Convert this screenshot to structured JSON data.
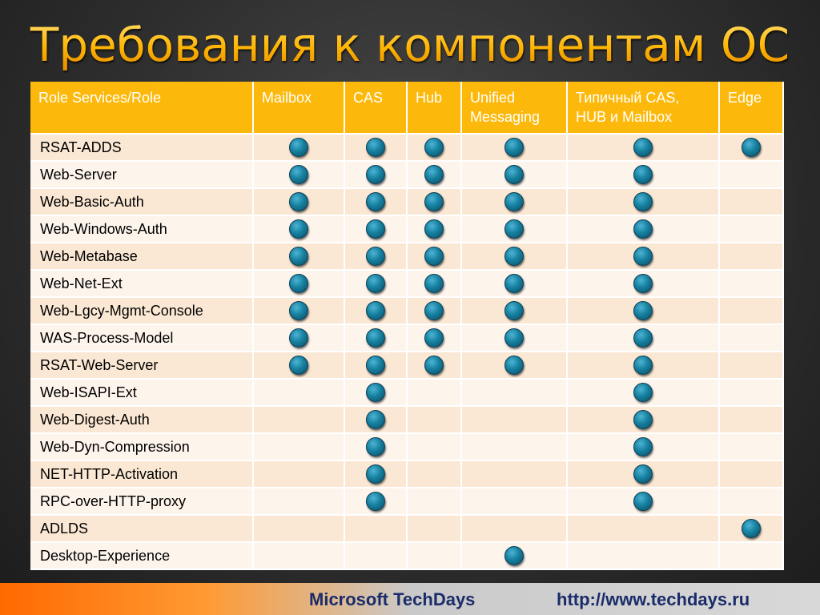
{
  "title": "Требования к компонентам ОС",
  "columns": [
    "Role Services/Role",
    "Mailbox",
    "CAS",
    "Hub",
    "Unified Messaging",
    "Типичный CAS, HUB и Mailbox",
    "Edge"
  ],
  "rows": [
    {
      "name": "RSAT-ADDS",
      "marks": [
        true,
        true,
        true,
        true,
        true,
        true
      ]
    },
    {
      "name": "Web-Server",
      "marks": [
        true,
        true,
        true,
        true,
        true,
        false
      ]
    },
    {
      "name": "Web-Basic-Auth",
      "marks": [
        true,
        true,
        true,
        true,
        true,
        false
      ]
    },
    {
      "name": "Web-Windows-Auth",
      "marks": [
        true,
        true,
        true,
        true,
        true,
        false
      ]
    },
    {
      "name": "Web-Metabase",
      "marks": [
        true,
        true,
        true,
        true,
        true,
        false
      ]
    },
    {
      "name": "Web-Net-Ext",
      "marks": [
        true,
        true,
        true,
        true,
        true,
        false
      ]
    },
    {
      "name": "Web-Lgcy-Mgmt-Console",
      "marks": [
        true,
        true,
        true,
        true,
        true,
        false
      ]
    },
    {
      "name": "WAS-Process-Model",
      "marks": [
        true,
        true,
        true,
        true,
        true,
        false
      ]
    },
    {
      "name": "RSAT-Web-Server",
      "marks": [
        true,
        true,
        true,
        true,
        true,
        false
      ]
    },
    {
      "name": "Web-ISAPI-Ext",
      "marks": [
        false,
        true,
        false,
        false,
        true,
        false
      ]
    },
    {
      "name": "Web-Digest-Auth",
      "marks": [
        false,
        true,
        false,
        false,
        true,
        false
      ]
    },
    {
      "name": "Web-Dyn-Compression",
      "marks": [
        false,
        true,
        false,
        false,
        true,
        false
      ]
    },
    {
      "name": "NET-HTTP-Activation",
      "marks": [
        false,
        true,
        false,
        false,
        true,
        false
      ]
    },
    {
      "name": "RPC-over-HTTP-proxy",
      "marks": [
        false,
        true,
        false,
        false,
        true,
        false
      ]
    },
    {
      "name": "ADLDS",
      "marks": [
        false,
        false,
        false,
        false,
        false,
        true
      ]
    },
    {
      "name": "Desktop-Experience",
      "marks": [
        false,
        false,
        false,
        true,
        false,
        false
      ]
    }
  ],
  "footer": {
    "brand": "Microsoft TechDays",
    "url": "http://www.techdays.ru"
  },
  "colors": {
    "header": "#fdb90b",
    "row_odd": "#fbe8d4",
    "row_even": "#fdf4ec",
    "dot": "#16809f",
    "title": "#ffb400"
  }
}
